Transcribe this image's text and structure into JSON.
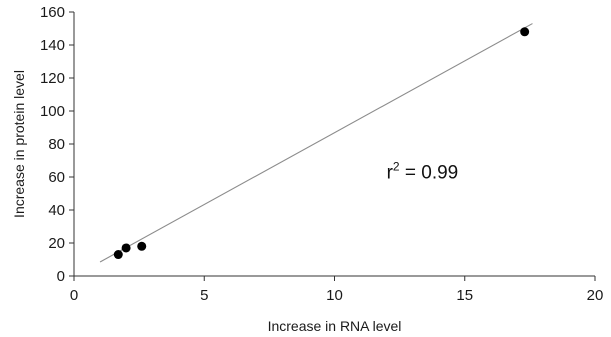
{
  "chart_data": {
    "type": "scatter",
    "title": "",
    "xlabel": "Increase in RNA level",
    "ylabel": "Increase in protein level",
    "xlim": [
      0,
      20
    ],
    "ylim": [
      0,
      160
    ],
    "x_ticks": [
      0,
      5,
      10,
      15,
      20
    ],
    "y_ticks": [
      0,
      20,
      40,
      60,
      80,
      100,
      120,
      140,
      160
    ],
    "grid": false,
    "legend": "none",
    "points": [
      {
        "x": 1.7,
        "y": 13
      },
      {
        "x": 2.0,
        "y": 17
      },
      {
        "x": 2.6,
        "y": 18
      },
      {
        "x": 17.3,
        "y": 148
      }
    ],
    "trendline": {
      "x": [
        1.0,
        17.6
      ],
      "y": [
        8.5,
        153
      ]
    },
    "annotation": {
      "prefix": "r",
      "superscript": "2",
      "suffix": " = 0.99",
      "x": 12.0,
      "y": 59
    },
    "colors": {
      "points": "#000000",
      "trendline": "#8c8c8c",
      "axis": "#333333",
      "text": "#1a1a1a"
    }
  }
}
